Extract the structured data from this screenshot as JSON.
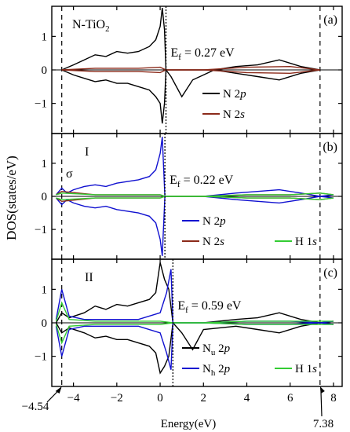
{
  "figure": {
    "ylabel": "DOS(states/eV)",
    "xlabel": "Energy(eV)",
    "xlim": [
      -5,
      8.4
    ],
    "x_ticks": [
      -4,
      -2,
      0,
      2,
      4,
      6,
      8
    ],
    "bottom_annotations": [
      {
        "text": "−4.54",
        "x": -4.54
      },
      {
        "text": "7.38",
        "x": 7.38
      }
    ]
  },
  "chart_data": [
    {
      "type": "line",
      "panel": "(a)",
      "title": "N-TiO2",
      "title_main": "N-TiO",
      "title_sub": "2",
      "ylim": [
        -1.9,
        1.9
      ],
      "y_ticks": [
        -1,
        0,
        1
      ],
      "fermi": {
        "x": 0.27,
        "label_pre": "E",
        "label_sub": "f",
        "label_post": " = 0.27 eV"
      },
      "series": [
        {
          "name": "N 2p",
          "name_main": "N 2",
          "name_it": "p",
          "color": "#000000",
          "x": [
            -4.54,
            -4,
            -3.5,
            -3,
            -2.5,
            -2,
            -1.5,
            -1,
            -0.5,
            -0.2,
            0,
            0.1,
            0.2,
            0.27,
            0.5,
            1,
            1.5,
            2.5,
            3.5,
            4.5,
            5.5,
            6.5,
            7.38
          ],
          "up": [
            0,
            0.15,
            0.3,
            0.45,
            0.4,
            0.55,
            0.5,
            0.55,
            0.7,
            0.9,
            1.3,
            1.85,
            1.2,
            0,
            0,
            0,
            0,
            0,
            0.1,
            0.15,
            0.3,
            0.1,
            0
          ],
          "down": [
            0,
            -0.15,
            -0.25,
            -0.35,
            -0.3,
            -0.4,
            -0.4,
            -0.5,
            -0.6,
            -0.8,
            -1.0,
            -1.6,
            -1.0,
            0,
            -0.2,
            -0.8,
            -0.3,
            0,
            -0.1,
            -0.2,
            -0.3,
            -0.1,
            0
          ]
        },
        {
          "name": "N 2s",
          "name_main": "N 2",
          "name_it": "s",
          "color": "#8b2a1a",
          "x": [
            -4.54,
            -3,
            -1,
            0,
            0.27,
            2,
            4,
            6,
            7.38
          ],
          "up": [
            0,
            0.05,
            0.05,
            0.08,
            0,
            0,
            0.08,
            0.1,
            0
          ],
          "down": [
            0,
            -0.05,
            -0.05,
            -0.08,
            0,
            0,
            -0.08,
            -0.1,
            0
          ]
        }
      ]
    },
    {
      "type": "line",
      "panel": "(b)",
      "title": "I",
      "annotation": "σ",
      "ylim": [
        -1.9,
        1.9
      ],
      "y_ticks": [
        -1,
        0,
        1
      ],
      "fermi": {
        "x": 0.22,
        "label_pre": "E",
        "label_sub": "f",
        "label_post": " = 0.22 eV"
      },
      "series": [
        {
          "name": "N 2p",
          "name_main": "N 2",
          "name_it": "p",
          "color": "#1010d0",
          "x": [
            -4.8,
            -4.54,
            -4.3,
            -4,
            -3.5,
            -3,
            -2.5,
            -2,
            -1.5,
            -1,
            -0.5,
            -0.2,
            0,
            0.1,
            0.22,
            2,
            3.5,
            4.5,
            5.5,
            6.5,
            7.38,
            8
          ],
          "up": [
            0.05,
            0.25,
            0.1,
            0.2,
            0.3,
            0.35,
            0.3,
            0.4,
            0.45,
            0.5,
            0.6,
            0.8,
            1.3,
            1.8,
            0,
            0,
            0.1,
            0.15,
            0.2,
            0.1,
            0,
            0.05
          ],
          "down": [
            -0.05,
            -0.25,
            -0.1,
            -0.2,
            -0.3,
            -0.35,
            -0.3,
            -0.4,
            -0.45,
            -0.5,
            -0.6,
            -0.8,
            -1.3,
            -1.8,
            0,
            0,
            -0.1,
            -0.15,
            -0.2,
            -0.1,
            0,
            -0.05
          ]
        },
        {
          "name": "N 2s",
          "name_main": "N 2",
          "name_it": "s",
          "color": "#8b2a1a",
          "x": [
            -4.8,
            -4.54,
            -3,
            -1,
            0,
            0.22,
            2,
            4,
            6,
            7.38,
            8
          ],
          "up": [
            0.05,
            0.15,
            0.05,
            0.05,
            0.05,
            0,
            0,
            0.05,
            0.05,
            0.1,
            0.05
          ],
          "down": [
            -0.05,
            -0.15,
            -0.05,
            -0.05,
            -0.05,
            0,
            0,
            -0.05,
            -0.05,
            -0.1,
            -0.05
          ]
        },
        {
          "name": "H 1s",
          "name_main": "H 1",
          "name_it": "s",
          "color": "#33cc33",
          "x": [
            -4.8,
            -4.54,
            -3,
            -1,
            0,
            0.22,
            2,
            4,
            6,
            7.38,
            8
          ],
          "up": [
            0.05,
            0.1,
            0.05,
            0.05,
            0.05,
            0,
            0,
            0.05,
            0.05,
            0.1,
            0.05
          ],
          "down": [
            -0.05,
            -0.1,
            -0.05,
            -0.05,
            -0.05,
            0,
            0,
            -0.05,
            -0.05,
            -0.1,
            -0.05
          ]
        }
      ]
    },
    {
      "type": "line",
      "panel": "(c)",
      "title": "II",
      "ylim": [
        -1.9,
        1.9
      ],
      "y_ticks": [
        -1,
        0,
        1
      ],
      "fermi": {
        "x": 0.59,
        "label_pre": "E",
        "label_sub": "f",
        "label_post": " = 0.59 eV"
      },
      "series": [
        {
          "name": "Nu 2p",
          "name_main": "N",
          "name_sub": "u",
          "name_post": " 2",
          "name_it": "p",
          "color": "#000000",
          "x": [
            -4.8,
            -4.54,
            -4.2,
            -3.5,
            -3,
            -2.5,
            -2,
            -1.5,
            -1,
            -0.5,
            -0.2,
            0,
            0.2,
            0.4,
            0.59,
            1,
            1.5,
            2,
            3.5,
            4.5,
            5.5,
            6.5,
            7.38,
            8
          ],
          "up": [
            0,
            0.3,
            0.15,
            0.3,
            0.5,
            0.4,
            0.55,
            0.5,
            0.6,
            0.7,
            0.9,
            1.8,
            1.3,
            1.0,
            0,
            0,
            0,
            0,
            0.1,
            0.15,
            0.3,
            0.1,
            0,
            0.05
          ],
          "down": [
            0,
            -0.3,
            -0.15,
            -0.3,
            -0.45,
            -0.4,
            -0.5,
            -0.5,
            -0.6,
            -0.7,
            -0.9,
            -1.5,
            -1.3,
            -1.0,
            0,
            -0.3,
            -0.8,
            -0.2,
            -0.1,
            -0.2,
            -0.3,
            -0.1,
            0,
            -0.05
          ]
        },
        {
          "name": "Nh 2p",
          "name_main": "N",
          "name_sub": "h",
          "name_post": " 2",
          "name_it": "p",
          "color": "#1010d0",
          "x": [
            -4.8,
            -4.54,
            -4.2,
            -3.5,
            -2,
            -1,
            0,
            0.3,
            0.5,
            0.59,
            2,
            4,
            6,
            7.38,
            8
          ],
          "up": [
            0.1,
            1.0,
            0.2,
            0.1,
            0.1,
            0.1,
            0.3,
            0.9,
            1.6,
            0,
            0,
            0.05,
            0.05,
            0,
            0.05
          ],
          "down": [
            -0.1,
            -1.0,
            -0.2,
            -0.1,
            -0.1,
            -0.1,
            -0.3,
            -0.9,
            -1.4,
            0,
            0,
            -0.05,
            -0.05,
            0,
            -0.05
          ]
        },
        {
          "name": "H 1s",
          "name_main": "H 1",
          "name_it": "s",
          "color": "#33cc33",
          "x": [
            -4.8,
            -4.54,
            -4.2,
            -3,
            -1,
            0,
            0.59,
            2,
            4,
            6,
            7.38,
            8
          ],
          "up": [
            0.05,
            0.6,
            0.1,
            0.05,
            0.05,
            0.05,
            0,
            0,
            0.05,
            0.05,
            0.05,
            0.05
          ],
          "down": [
            -0.05,
            -0.6,
            -0.1,
            -0.05,
            -0.05,
            -0.05,
            0,
            0,
            -0.05,
            -0.05,
            -0.05,
            -0.05
          ]
        }
      ]
    }
  ]
}
